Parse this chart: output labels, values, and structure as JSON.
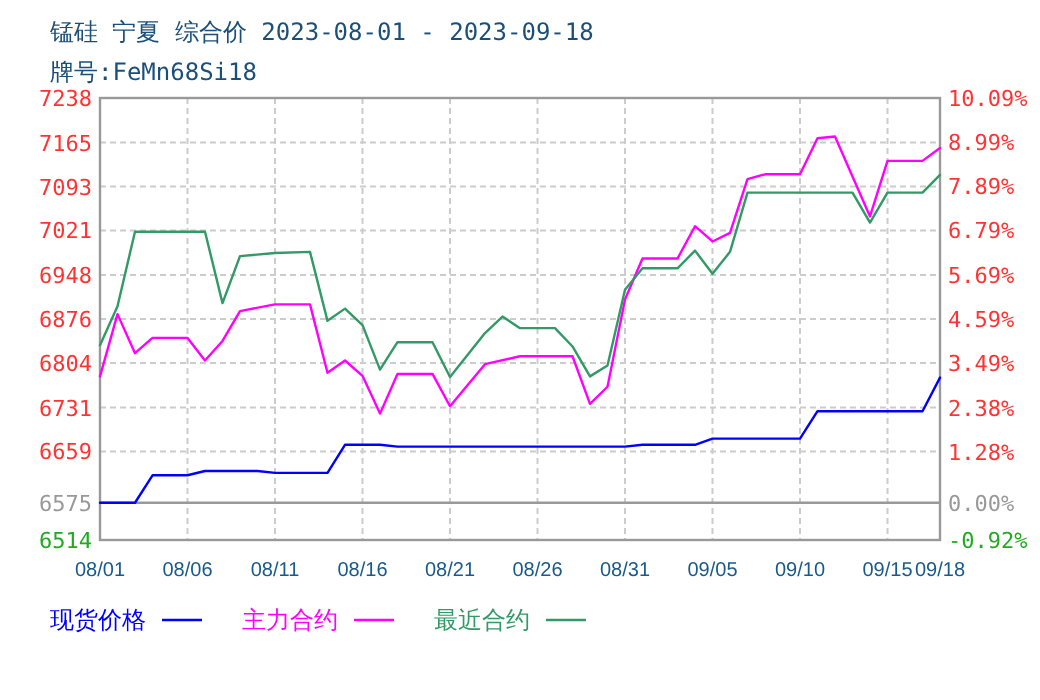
{
  "chart_data": {
    "type": "line",
    "title": "锰硅  宁夏  综合价  2023-08-01 - 2023-09-18",
    "subtitle": "牌号:FeMn68Si18",
    "xlim": [
      "2023-08-01",
      "2023-09-18"
    ],
    "xticks": [
      {
        "value": "2023-08-01",
        "label": "08/01"
      },
      {
        "value": "2023-08-06",
        "label": "08/06"
      },
      {
        "value": "2023-08-11",
        "label": "08/11"
      },
      {
        "value": "2023-08-16",
        "label": "08/16"
      },
      {
        "value": "2023-08-21",
        "label": "08/21"
      },
      {
        "value": "2023-08-26",
        "label": "08/26"
      },
      {
        "value": "2023-08-31",
        "label": "08/31"
      },
      {
        "value": "2023-09-05",
        "label": "09/05"
      },
      {
        "value": "2023-09-10",
        "label": "09/10"
      },
      {
        "value": "2023-09-15",
        "label": "09/15"
      },
      {
        "value": "2023-09-18",
        "label": "09/18"
      }
    ],
    "ylim": [
      6514,
      7238
    ],
    "yticks": [
      7238,
      7165,
      7093,
      7021,
      6948,
      6876,
      6804,
      6731,
      6659,
      6575,
      6514
    ],
    "y2lim": [
      -0.92,
      10.09
    ],
    "y2ticks": [
      {
        "value": 10.09,
        "label": "10.09%"
      },
      {
        "value": 8.99,
        "label": "8.99%"
      },
      {
        "value": 7.89,
        "label": "7.89%"
      },
      {
        "value": 6.79,
        "label": "6.79%"
      },
      {
        "value": 5.69,
        "label": "5.69%"
      },
      {
        "value": 4.59,
        "label": "4.59%"
      },
      {
        "value": 3.49,
        "label": "3.49%"
      },
      {
        "value": 2.38,
        "label": "2.38%"
      },
      {
        "value": 1.28,
        "label": "1.28%"
      },
      {
        "value": 0,
        "label": "0.00%"
      },
      {
        "value": -0.92,
        "label": "-0.92%"
      }
    ],
    "ref_lines": [
      {
        "axis": "y",
        "value": 6575,
        "color": "#999999",
        "line_style": "solid"
      }
    ],
    "grid": true,
    "legend": "bottom",
    "marker": "none",
    "line_style": "solid",
    "series": [
      {
        "name": "现货价格",
        "color": "#0000ff",
        "x": [
          "2023-08-01",
          "2023-08-03",
          "2023-08-04",
          "2023-08-06",
          "2023-08-07",
          "2023-08-10",
          "2023-08-11",
          "2023-08-14",
          "2023-08-15",
          "2023-08-17",
          "2023-08-18",
          "2023-08-31",
          "2023-09-01",
          "2023-09-04",
          "2023-09-05",
          "2023-09-10",
          "2023-09-11",
          "2023-09-17",
          "2023-09-18"
        ],
        "values": [
          6575,
          6575,
          6620,
          6620,
          6627,
          6627,
          6624,
          6624,
          6670,
          6670,
          6667,
          6667,
          6670,
          6670,
          6680,
          6680,
          6725,
          6725,
          6780
        ]
      },
      {
        "name": "主力合约",
        "color": "#ff00ff",
        "x": [
          "2023-08-01",
          "2023-08-02",
          "2023-08-03",
          "2023-08-04",
          "2023-08-06",
          "2023-08-07",
          "2023-08-08",
          "2023-08-09",
          "2023-08-11",
          "2023-08-13",
          "2023-08-14",
          "2023-08-15",
          "2023-08-16",
          "2023-08-17",
          "2023-08-18",
          "2023-08-20",
          "2023-08-21",
          "2023-08-23",
          "2023-08-25",
          "2023-08-28",
          "2023-08-29",
          "2023-08-30",
          "2023-08-31",
          "2023-09-01",
          "2023-09-03",
          "2023-09-04",
          "2023-09-05",
          "2023-09-06",
          "2023-09-07",
          "2023-09-08",
          "2023-09-10",
          "2023-09-11",
          "2023-09-12",
          "2023-09-14",
          "2023-09-15",
          "2023-09-17",
          "2023-09-18"
        ],
        "values": [
          6782,
          6884,
          6820,
          6845,
          6845,
          6808,
          6840,
          6889,
          6900,
          6900,
          6788,
          6808,
          6783,
          6721,
          6786,
          6786,
          6733,
          6802,
          6815,
          6815,
          6737,
          6765,
          6908,
          6975,
          6975,
          7028,
          7003,
          7017,
          7105,
          7113,
          7113,
          7172,
          7175,
          7044,
          7135,
          7135,
          7156
        ]
      },
      {
        "name": "最近合约",
        "color": "#339966",
        "x": [
          "2023-08-01",
          "2023-08-02",
          "2023-08-03",
          "2023-08-07",
          "2023-08-08",
          "2023-08-09",
          "2023-08-11",
          "2023-08-13",
          "2023-08-14",
          "2023-08-15",
          "2023-08-16",
          "2023-08-17",
          "2023-08-18",
          "2023-08-20",
          "2023-08-21",
          "2023-08-23",
          "2023-08-24",
          "2023-08-25",
          "2023-08-27",
          "2023-08-28",
          "2023-08-29",
          "2023-08-30",
          "2023-08-31",
          "2023-09-01",
          "2023-09-03",
          "2023-09-04",
          "2023-09-05",
          "2023-09-06",
          "2023-09-07",
          "2023-09-13",
          "2023-09-14",
          "2023-09-15",
          "2023-09-17",
          "2023-09-18"
        ],
        "values": [
          6833,
          6897,
          7019,
          7019,
          6902,
          6979,
          6984,
          6986,
          6873,
          6893,
          6866,
          6793,
          6838,
          6838,
          6781,
          6853,
          6880,
          6861,
          6861,
          6831,
          6782,
          6800,
          6924,
          6959,
          6959,
          6988,
          6950,
          6986,
          7083,
          7083,
          7034,
          7083,
          7083,
          7112
        ]
      }
    ]
  }
}
